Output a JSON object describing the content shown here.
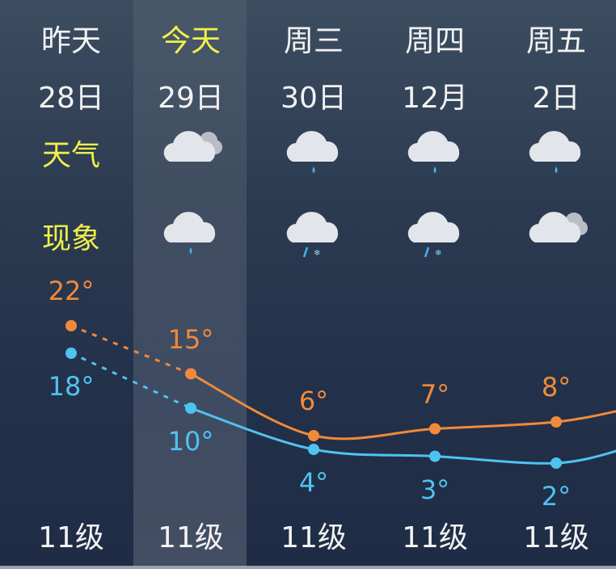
{
  "days": [
    {
      "name": "昨天",
      "date": "28日",
      "day_icon": "partly-cloudy-icon",
      "night_icon": "cloudy-icon",
      "high": 22,
      "low": 18,
      "high_label": "22°",
      "low_label": "18°",
      "wind": "11级",
      "today": false
    },
    {
      "name": "今天",
      "date": "29日",
      "day_icon": "partly-cloudy-icon",
      "night_icon": "light-rain-icon",
      "high": 15,
      "low": 10,
      "high_label": "15°",
      "low_label": "10°",
      "wind": "11级",
      "today": true
    },
    {
      "name": "周三",
      "date": "30日",
      "day_icon": "light-rain-icon",
      "night_icon": "sleet-icon",
      "high": 6,
      "low": 4,
      "high_label": "6°",
      "low_label": "4°",
      "wind": "11级",
      "today": false
    },
    {
      "name": "周四",
      "date": "12月",
      "day_icon": "light-rain-icon",
      "night_icon": "sleet-icon",
      "high": 7,
      "low": 3,
      "high_label": "7°",
      "low_label": "3°",
      "wind": "11级",
      "today": false
    },
    {
      "name": "周五",
      "date": "2日",
      "day_icon": "light-rain-icon",
      "night_icon": "partly-cloudy-icon",
      "high": 8,
      "low": 2,
      "high_label": "8°",
      "low_label": "2°",
      "wind": "11级",
      "today": false
    }
  ],
  "labels": {
    "weather": "天气",
    "phenomenon": "现象"
  },
  "colors": {
    "high": "#f08a3a",
    "low": "#4fc3f0",
    "today_text": "#f0f04a",
    "label": "#f0f04a"
  }
}
